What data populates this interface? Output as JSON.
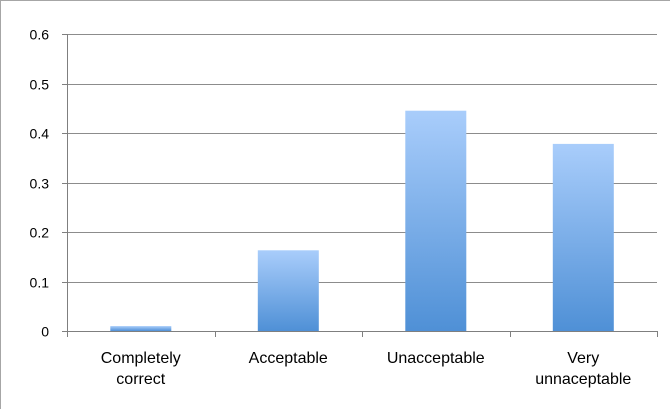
{
  "chart_data": {
    "type": "bar",
    "categories": [
      [
        "Completely",
        "correct"
      ],
      [
        "Acceptable"
      ],
      [
        "Unacceptable"
      ],
      [
        "Very",
        "unnaceptable"
      ]
    ],
    "values": [
      0.01,
      0.163,
      0.445,
      0.378
    ],
    "yticks": [
      "0",
      "0.1",
      "0.2",
      "0.3",
      "0.4",
      "0.5",
      "0.6"
    ],
    "ylim": [
      0,
      0.6
    ],
    "grid": true,
    "legend": "none",
    "title": "",
    "xlabel": "",
    "ylabel": ""
  },
  "colors": {
    "bar_top": "#a9cdfb",
    "bar_bottom": "#4f90d6",
    "gridline": "#8c8c8c",
    "axis": "#7f7f7f"
  }
}
